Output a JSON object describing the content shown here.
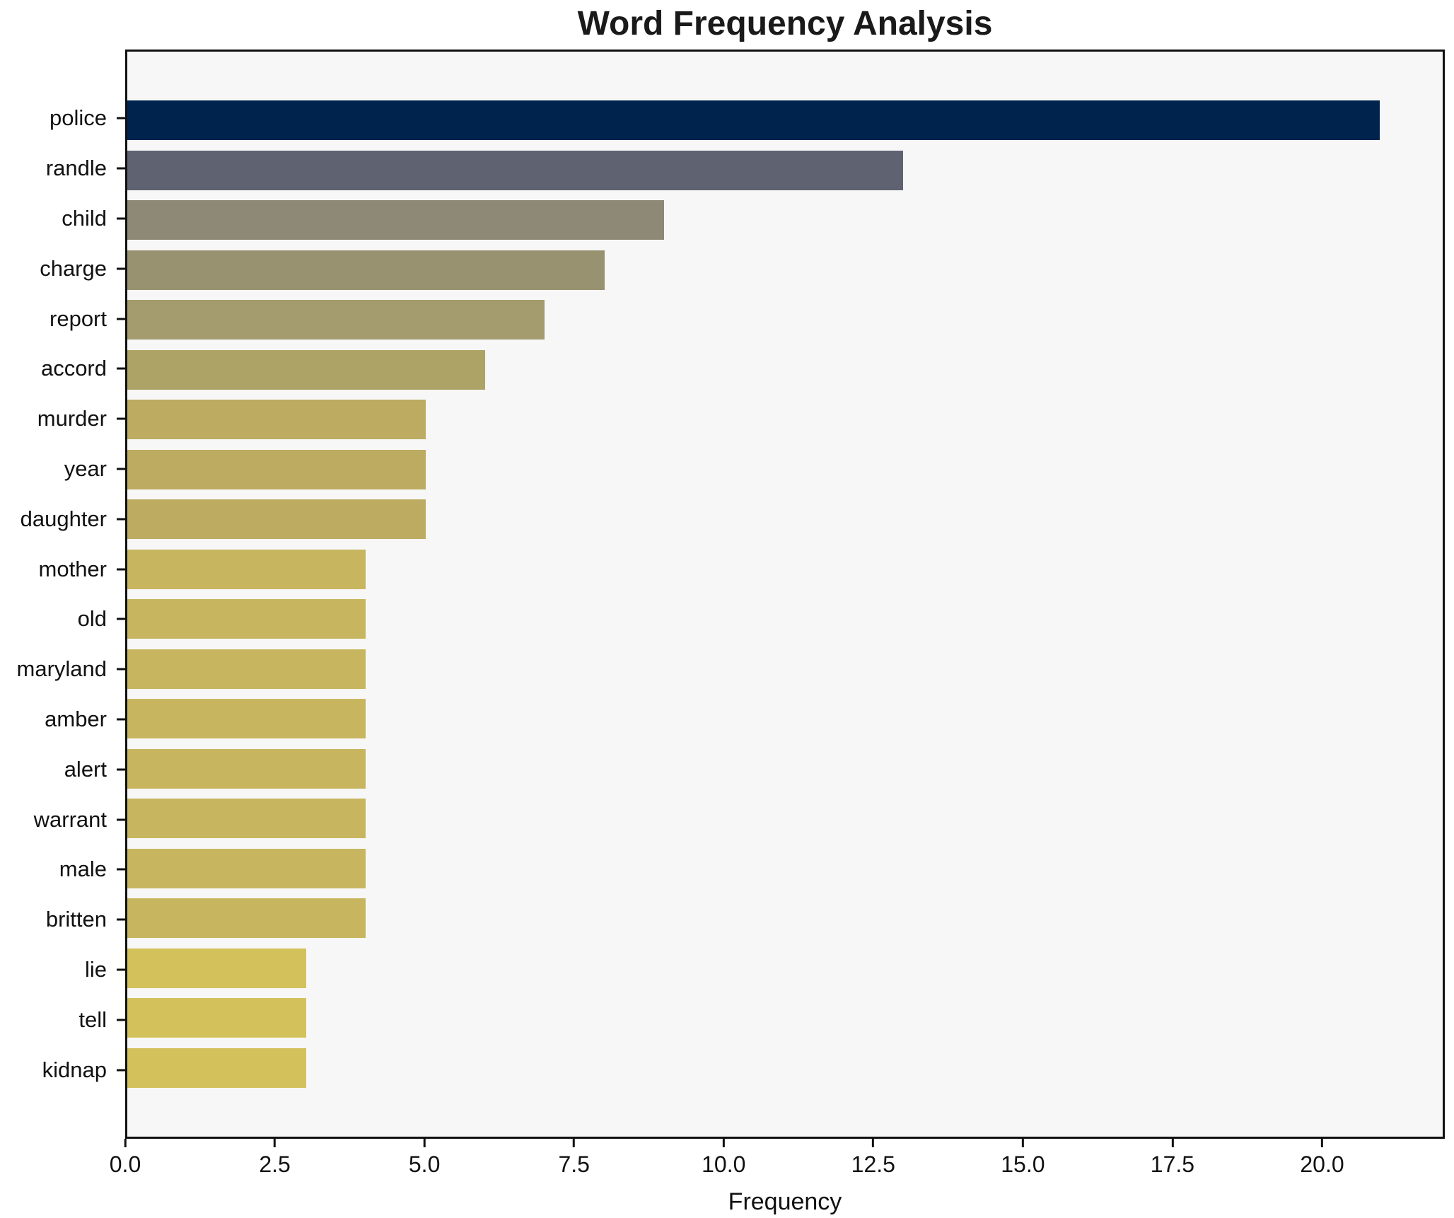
{
  "chart_data": {
    "type": "bar",
    "orientation": "horizontal",
    "title": "Word Frequency Analysis",
    "xlabel": "Frequency",
    "ylabel": "",
    "categories": [
      "police",
      "randle",
      "child",
      "charge",
      "report",
      "accord",
      "murder",
      "year",
      "daughter",
      "mother",
      "old",
      "maryland",
      "amber",
      "alert",
      "warrant",
      "male",
      "britten",
      "lie",
      "tell",
      "kidnap"
    ],
    "values": [
      21,
      13,
      9,
      8,
      7,
      6,
      5,
      5,
      5,
      4,
      4,
      4,
      4,
      4,
      4,
      4,
      4,
      3,
      3,
      3
    ],
    "bar_colors": [
      "#00234e",
      "#5e6271",
      "#8e8877",
      "#999270",
      "#a49b6e",
      "#ada366",
      "#bcab60",
      "#bcab60",
      "#bcab60",
      "#c7b65f",
      "#c7b65f",
      "#c7b65f",
      "#c7b65f",
      "#c7b65f",
      "#c7b65f",
      "#c7b65f",
      "#c7b65f",
      "#d3c15b",
      "#d3c15b",
      "#d3c15b"
    ],
    "xlim": [
      0,
      22.05
    ],
    "x_ticks": [
      0,
      2.5,
      5,
      7.5,
      10,
      12.5,
      15,
      17.5,
      20
    ],
    "x_tick_labels": [
      "0.0",
      "2.5",
      "5.0",
      "7.5",
      "10.0",
      "12.5",
      "15.0",
      "17.5",
      "20.0"
    ],
    "grid": false,
    "legend": null,
    "plot_background": "#f7f7f7",
    "figure_background": "#ffffff",
    "axis_border_color": "#111111"
  }
}
